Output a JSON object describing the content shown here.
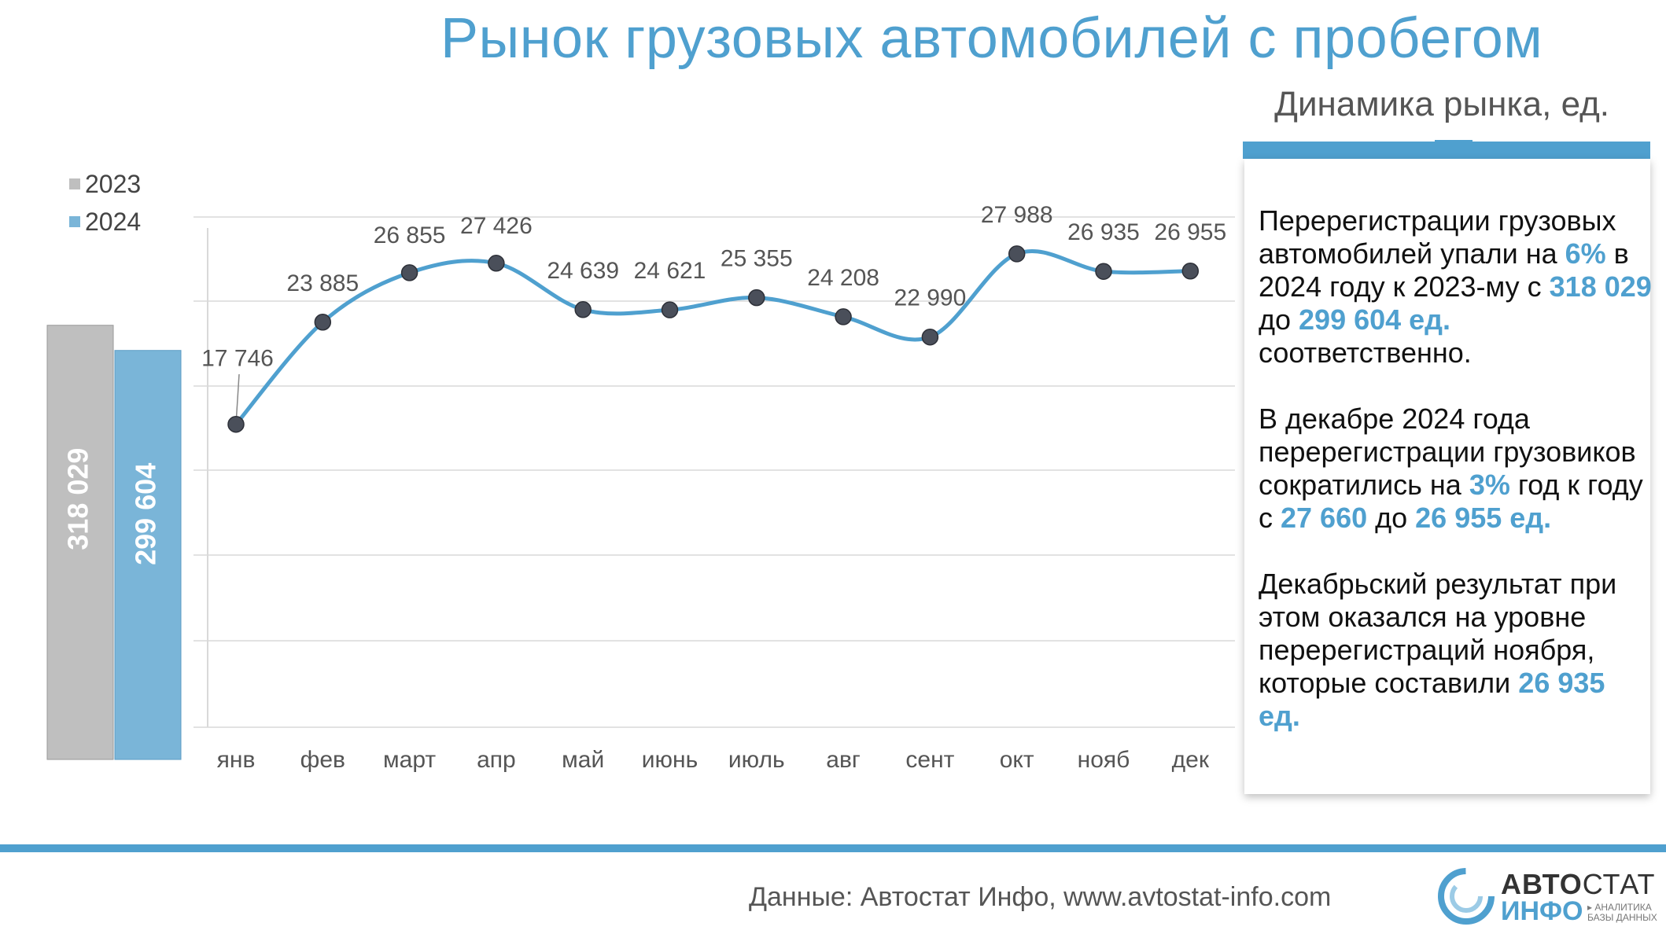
{
  "header": {
    "title": "Рынок грузовых автомобилей с пробегом",
    "subtitle": "Динамика рынка, ед."
  },
  "info": {
    "p1": {
      "t1": "Перерегистрации грузовых автомобилей упали на ",
      "h1": "6%",
      "t2": " в 2024 году к 2023-му с ",
      "h2": "318 029",
      "t3": " до ",
      "h3": "299 604 ед.",
      "t4": " соответственно."
    },
    "p2": {
      "t1": "В декабре 2024 года перерегистрации грузовиков сократились на ",
      "h1": "3%",
      "t2": " год к году с ",
      "h2": "27 660",
      "t3": " до ",
      "h3": "26 955 ед.",
      "t4": ""
    },
    "p3": {
      "t1": "Декабрьский результат при этом оказался на уровне перерегистраций ноября, которые составили ",
      "h1": "26 935 ед."
    }
  },
  "legend": {
    "y2023": "2023",
    "y2024": "2024"
  },
  "footer": {
    "source": "Данные: Автостат Инфо, www.avtostat-info.com"
  },
  "logo": {
    "main_bold": "АВТО",
    "main_thin": "СТАТ",
    "sub": "ИНФО",
    "tag_line1": "▸ АНАЛИТИКА",
    "tag_line2": "БАЗЫ ДАННЫХ"
  },
  "colors": {
    "accent": "#4fa0cf",
    "bar2023": "#bfbfbf",
    "bar2024": "#7ab5d8",
    "marker": "#4a4f5a"
  },
  "chart_data": [
    {
      "type": "bar",
      "title": "",
      "categories": [
        "2023",
        "2024"
      ],
      "values": [
        318029,
        299604
      ],
      "labels": [
        "318 029",
        "299 604"
      ],
      "ylim": [
        0,
        380000
      ]
    },
    {
      "type": "line",
      "title": "Динамика рынка, ед.",
      "categories": [
        "янв",
        "фев",
        "март",
        "апр",
        "май",
        "июнь",
        "июль",
        "авг",
        "сент",
        "окт",
        "нояб",
        "дек"
      ],
      "series": [
        {
          "name": "2024",
          "values": [
            17746,
            23885,
            26855,
            27426,
            24639,
            24621,
            25355,
            24208,
            22990,
            27988,
            26935,
            26955
          ],
          "labels": [
            "17 746",
            "23 885",
            "26 855",
            "27 426",
            "24 639",
            "24 621",
            "25 355",
            "24 208",
            "22 990",
            "27 988",
            "26 935",
            "26 955"
          ]
        }
      ],
      "grid": true,
      "legend": "left"
    }
  ]
}
